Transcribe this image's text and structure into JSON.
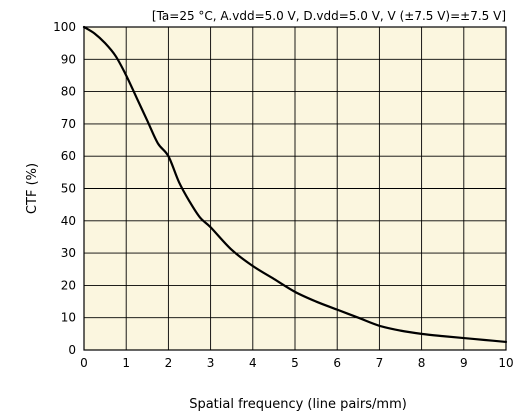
{
  "chart_data": {
    "type": "line",
    "title": "",
    "conditions": "[Ta=25 °C, A.vdd=5.0 V, D.vdd=5.0 V, V (±7.5 V)=±7.5 V]",
    "xlabel": "Spatial frequency (line pairs/mm)",
    "ylabel": "CTF (%)",
    "xlim": [
      0,
      10
    ],
    "ylim": [
      0,
      100
    ],
    "xticks": [
      0,
      1,
      2,
      3,
      4,
      5,
      6,
      7,
      8,
      9,
      10
    ],
    "yticks": [
      0,
      10,
      20,
      30,
      40,
      50,
      60,
      70,
      80,
      90,
      100
    ],
    "grid": true,
    "background_color": "#fbf6df",
    "line_color": "#000000",
    "series": [
      {
        "x": [
          0,
          0.25,
          0.5,
          0.75,
          1.0,
          1.25,
          1.5,
          1.75,
          2.0,
          2.25,
          2.5,
          2.75,
          3.0,
          3.5,
          4.0,
          4.5,
          5.0,
          5.5,
          6.0,
          6.5,
          7.0,
          7.5,
          8.0,
          8.5,
          9.0,
          9.5,
          10.0
        ],
        "y": [
          100,
          98,
          95,
          91,
          85,
          78,
          71,
          64,
          60,
          52,
          46,
          41,
          38,
          31,
          26,
          22,
          18,
          15,
          12.5,
          10,
          7.5,
          6,
          5,
          4.3,
          3.7,
          3.1,
          2.5
        ]
      }
    ]
  }
}
